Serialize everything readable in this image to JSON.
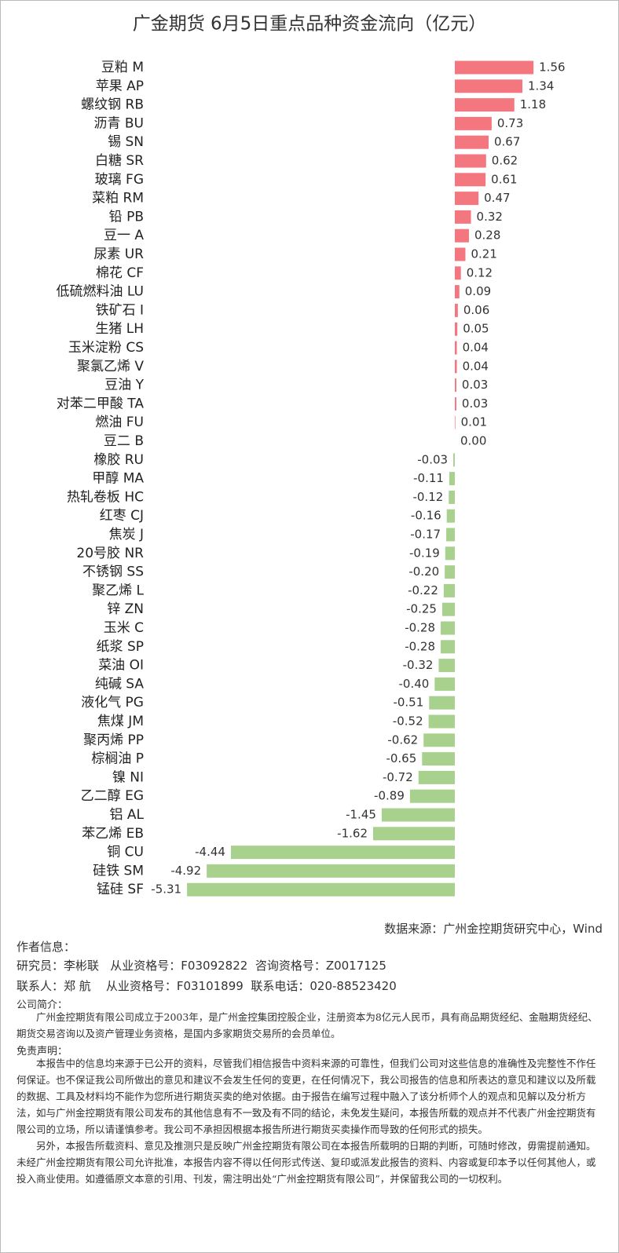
{
  "chart_data": {
    "type": "barh",
    "title": "广金期货 6月5日重点品种资金流向（亿元）",
    "categories": [
      "豆粕 M",
      "苹果 AP",
      "螺纹钢 RB",
      "沥青 BU",
      "锡 SN",
      "白糖 SR",
      "玻璃 FG",
      "菜粕 RM",
      "铅 PB",
      "豆一 A",
      "尿素 UR",
      "棉花 CF",
      "低硫燃料油 LU",
      "铁矿石 I",
      "生猪 LH",
      "玉米淀粉 CS",
      "聚氯乙烯 V",
      "豆油 Y",
      "对苯二甲酸 TA",
      "燃油 FU",
      "豆二 B",
      "橡胶 RU",
      "甲醇 MA",
      "热轧卷板 HC",
      "红枣 CJ",
      "焦炭 J",
      "20号胶 NR",
      "不锈钢 SS",
      "聚乙烯 L",
      "锌 ZN",
      "玉米 C",
      "纸浆 SP",
      "菜油 OI",
      "纯碱 SA",
      "液化气 PG",
      "焦煤 JM",
      "聚丙烯 PP",
      "棕榈油 P",
      "镍 NI",
      "乙二醇 EG",
      "铝 AL",
      "苯乙烯 EB",
      "铜 CU",
      "硅铁 SM",
      "锰硅 SF"
    ],
    "values": [
      1.56,
      1.34,
      1.18,
      0.73,
      0.67,
      0.62,
      0.61,
      0.47,
      0.32,
      0.28,
      0.21,
      0.12,
      0.09,
      0.06,
      0.05,
      0.04,
      0.04,
      0.03,
      0.03,
      0.01,
      0,
      -0.03,
      -0.11,
      -0.12,
      -0.16,
      -0.17,
      -0.19,
      -0.2,
      -0.22,
      -0.25,
      -0.28,
      -0.28,
      -0.32,
      -0.4,
      -0.51,
      -0.52,
      -0.62,
      -0.65,
      -0.72,
      -0.89,
      -1.45,
      -1.62,
      -4.44,
      -4.92,
      -5.31
    ],
    "value_labels": [
      "1.56",
      "1.34",
      "1.18",
      "0.73",
      "0.67",
      "0.62",
      "0.61",
      "0.47",
      "0.32",
      "0.28",
      "0.21",
      "0.12",
      "0.09",
      "0.06",
      "0.05",
      "0.04",
      "0.04",
      "0.03",
      "0.03",
      "0.01",
      "0.00",
      "-0.03",
      "-0.11",
      "-0.12",
      "-0.16",
      "-0.17",
      "-0.19",
      "-0.20",
      "-0.22",
      "-0.25",
      "-0.28",
      "-0.28",
      "-0.32",
      "-0.40",
      "-0.51",
      "-0.52",
      "-0.62",
      "-0.65",
      "-0.72",
      "-0.89",
      "-1.45",
      "-1.62",
      "-4.44",
      "-4.92",
      "-5.31"
    ],
    "positive_color": "#f4777f",
    "negative_color": "#a9d18e"
  },
  "source": "数据来源：广州金控期货研究中心，Wind",
  "author_heading": "作者信息：",
  "author_line1": "研究员：李彬联   从业资格号：F03092822  咨询资格号：Z0017125",
  "author_line2": "联系人：郑 航    从业资格号：F03101899  联系电话：020-88523420",
  "company_heading": "公司简介：",
  "company_text": "广州金控期货有限公司成立于2003年，是广州金控集团控股企业，注册资本为8亿元人民币，具有商品期货经纪、金融期货经纪、期货交易咨询以及资产管理业务资格，是国内多家期货交易所的会员单位。",
  "disclaimer_heading": "免责声明：",
  "disclaimer_text1": "本报告中的信息均来源于已公开的资料，尽管我们相信报告中资料来源的可靠性，但我们公司对这些信息的准确性及完整性不作任何保证。也不保证我公司所做出的意见和建议不会发生任何的变更，在任何情况下，我公司报告的信息和所表达的意见和建议以及所载的数据、工具及材料均不能作为您所进行期货买卖的绝对依据。由于报告在编写过程中融入了该分析师个人的观点和见解以及分析方法，如与广州金控期货有限公司发布的其他信息有不一致及有不同的结论，未免发生疑问，本报告所载的观点并不代表广州金控期货有限公司的立场，所以请谨慎参考。我公司不承担因根据本报告所进行期货买卖操作而导致的任何形式的损失。",
  "disclaimer_text2": "另外，本报告所载资料、意见及推测只是反映广州金控期货有限公司在本报告所载明的日期的判断，可随时修改，毋需提前通知。未经广州金控期货有限公司允许批准，本报告内容不得以任何形式传送、复印或派发此报告的资料、内容或复印本予以任何其他人，或投入商业使用。如遵循原文本意的引用、刊发，需注明出处“广州金控期货有限公司”，并保留我公司的一切权利。"
}
